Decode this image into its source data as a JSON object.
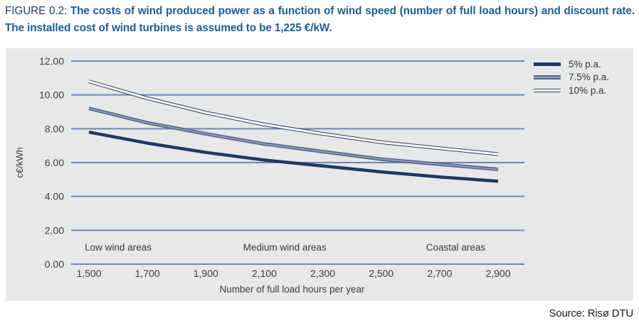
{
  "caption": {
    "label": "FIGURE 0.2:",
    "text": "The costs of wind produced power as a function of wind speed (number of full load hours) and discount rate. The installed cost of wind turbines is assumed to be 1,225 €/kW."
  },
  "source": "Source: Risø DTU",
  "colors": {
    "caption_label": "#243D5E",
    "caption_text": "#1E5C99",
    "panel_bg": "#E7E8E8",
    "gridline": "#6C87B7",
    "axis_text": "#3B3B3B",
    "series_5pct": "#1F3864",
    "series_7_5pct": "#56688F",
    "series_7_5pct_band": "#98A4C0",
    "series_10pct_outline": "#2E3D59",
    "series_10pct_fill": "#FFFFFF"
  },
  "chart_data": {
    "type": "line",
    "title": "",
    "xlabel": "Number of full load hours per year",
    "ylabel": "c€/kWh",
    "x": [
      1500,
      1700,
      1900,
      2100,
      2300,
      2500,
      2700,
      2900
    ],
    "x_tick_labels": [
      "1,500",
      "1,700",
      "1,900",
      "2,100",
      "2,300",
      "2,500",
      "2,700",
      "2,900"
    ],
    "y_ticks": [
      0,
      2,
      4,
      6,
      8,
      10,
      12
    ],
    "y_tick_labels": [
      "0.00",
      "2.00",
      "4.00",
      "6.00",
      "8.00",
      "10.00",
      "12.00"
    ],
    "ylim": [
      0,
      12
    ],
    "grid": "horizontal",
    "legend_position": "right",
    "series": [
      {
        "name": "5% p.a.",
        "style": "solid",
        "color": "#1F3864",
        "values": [
          7.8,
          7.15,
          6.6,
          6.15,
          5.8,
          5.45,
          5.15,
          4.9
        ]
      },
      {
        "name": "7.5% p.a.",
        "style": "banded",
        "color": "#56688F",
        "color2": "#98A4C0",
        "values": [
          9.2,
          8.35,
          7.7,
          7.1,
          6.65,
          6.2,
          5.9,
          5.6
        ]
      },
      {
        "name": "10% p.a.",
        "style": "double-outline",
        "color": "#2E3D59",
        "color2": "#FFFFFF",
        "values": [
          10.8,
          9.8,
          8.95,
          8.25,
          7.7,
          7.2,
          6.85,
          6.5
        ]
      }
    ],
    "annotations": [
      {
        "text": "Low wind areas",
        "x": 1600
      },
      {
        "text": "Medium wind areas",
        "x": 2170
      },
      {
        "text": "Coastal areas",
        "x": 2755
      }
    ]
  }
}
